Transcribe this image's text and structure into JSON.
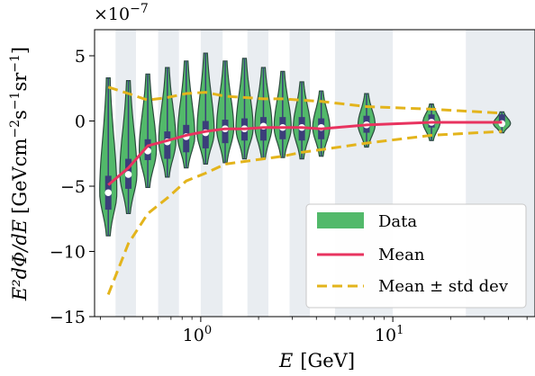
{
  "chart_data": {
    "type": "violin",
    "xscale": "log",
    "xlim": [
      0.28,
      55
    ],
    "ylim": [
      -15,
      7
    ],
    "scale_note": "×10⁻⁷",
    "scale_prefix": "×10",
    "scale_exp": "−7",
    "xlabel_symbol": "E",
    "xlabel_unit": "[GeV]",
    "ylabel": "E²dΦ/dE [GeV cm⁻² s⁻¹ sr⁻¹]",
    "ylabel_expr": "E²dΦ/dE",
    "ylabel_unit_open": "[GeVcm",
    "ylabel_unit_m2": "−2",
    "ylabel_unit_s": "s",
    "ylabel_unit_m1a": "−1",
    "ylabel_unit_sr": "sr",
    "ylabel_unit_m1b": "−1",
    "ylabel_unit_close": "]",
    "yticks": [
      {
        "value": 5,
        "label": "5"
      },
      {
        "value": 0,
        "label": "0"
      },
      {
        "value": -5,
        "label": "−5"
      },
      {
        "value": -10,
        "label": "−10"
      },
      {
        "value": -15,
        "label": "−15"
      }
    ],
    "xticks": [
      {
        "value": 1,
        "base": "10",
        "exp": "0"
      },
      {
        "value": 10,
        "base": "10",
        "exp": "1"
      }
    ],
    "bands": [
      [
        0.36,
        0.46
      ],
      [
        0.6,
        0.77
      ],
      [
        1.0,
        1.3
      ],
      [
        1.75,
        2.25
      ],
      [
        2.9,
        3.7
      ],
      [
        5.0,
        10.0
      ],
      [
        24.0,
        55.0
      ]
    ],
    "legend_position": "lower right",
    "legend": [
      {
        "kind": "patch",
        "label": "Data"
      },
      {
        "kind": "line",
        "label": "Mean"
      },
      {
        "kind": "dashed",
        "label": "Mean ± std dev"
      }
    ],
    "series": [
      {
        "name": "Data",
        "x": [
          0.33,
          0.42,
          0.53,
          0.67,
          0.84,
          1.06,
          1.34,
          1.69,
          2.12,
          2.67,
          3.36,
          4.24,
          7.3,
          15.9,
          37.0
        ],
        "min": [
          -8.8,
          -7.1,
          -5.1,
          -4.3,
          -3.6,
          -3.3,
          -3.2,
          -2.9,
          -2.9,
          -2.8,
          -2.9,
          -2.7,
          -2.0,
          -1.5,
          -0.9
        ],
        "max": [
          3.3,
          3.1,
          3.6,
          4.1,
          4.6,
          5.2,
          4.6,
          4.8,
          4.1,
          3.8,
          3.0,
          2.3,
          2.1,
          1.3,
          0.7
        ],
        "q1": [
          -6.8,
          -5.2,
          -3.0,
          -2.9,
          -2.4,
          -2.1,
          -1.7,
          -1.5,
          -1.5,
          -1.4,
          -1.5,
          -1.4,
          -0.9,
          -0.5,
          -0.4
        ],
        "q3": [
          -4.2,
          -2.9,
          -1.4,
          -0.8,
          -0.3,
          0.0,
          0.1,
          0.2,
          0.3,
          0.3,
          0.3,
          0.2,
          0.4,
          0.5,
          0.5
        ],
        "median": [
          -5.5,
          -4.1,
          -2.3,
          -1.6,
          -1.2,
          -0.9,
          -0.6,
          -0.6,
          -0.4,
          -0.5,
          -0.5,
          -0.5,
          -0.3,
          -0.1,
          -0.2
        ]
      },
      {
        "name": "Mean",
        "x": [
          0.33,
          0.42,
          0.53,
          0.67,
          0.84,
          1.06,
          1.34,
          1.69,
          2.12,
          2.67,
          3.36,
          4.24,
          7.3,
          15.9,
          37.0
        ],
        "y": [
          -4.9,
          -3.6,
          -1.9,
          -1.5,
          -1.1,
          -0.8,
          -0.6,
          -0.6,
          -0.5,
          -0.5,
          -0.5,
          -0.6,
          -0.3,
          -0.1,
          -0.1
        ]
      },
      {
        "name": "Mean + std dev",
        "x": [
          0.33,
          0.42,
          0.53,
          0.67,
          0.84,
          1.06,
          1.34,
          1.69,
          2.12,
          2.67,
          3.36,
          4.24,
          7.3,
          15.9,
          37.0
        ],
        "y": [
          2.6,
          2.1,
          1.6,
          1.8,
          2.1,
          2.2,
          1.9,
          1.8,
          1.7,
          1.7,
          1.6,
          1.5,
          1.1,
          0.9,
          0.6
        ]
      },
      {
        "name": "Mean − std dev",
        "x": [
          0.33,
          0.42,
          0.53,
          0.67,
          0.84,
          1.06,
          1.34,
          1.69,
          2.12,
          2.67,
          3.36,
          4.24,
          7.3,
          15.9,
          37.0
        ],
        "y": [
          -13.3,
          -9.4,
          -7.1,
          -5.9,
          -4.6,
          -4.0,
          -3.3,
          -3.1,
          -2.9,
          -2.7,
          -2.4,
          -2.2,
          -1.7,
          -1.1,
          -0.8
        ]
      }
    ],
    "colors": {
      "violin_fill": "#52b96a",
      "violin_edge": "#2c4a3e",
      "box": "#3b3e7a",
      "median": "#ffffff",
      "mean": "#e8335f",
      "std": "#e3b41c",
      "band": "#e9edf1"
    }
  }
}
